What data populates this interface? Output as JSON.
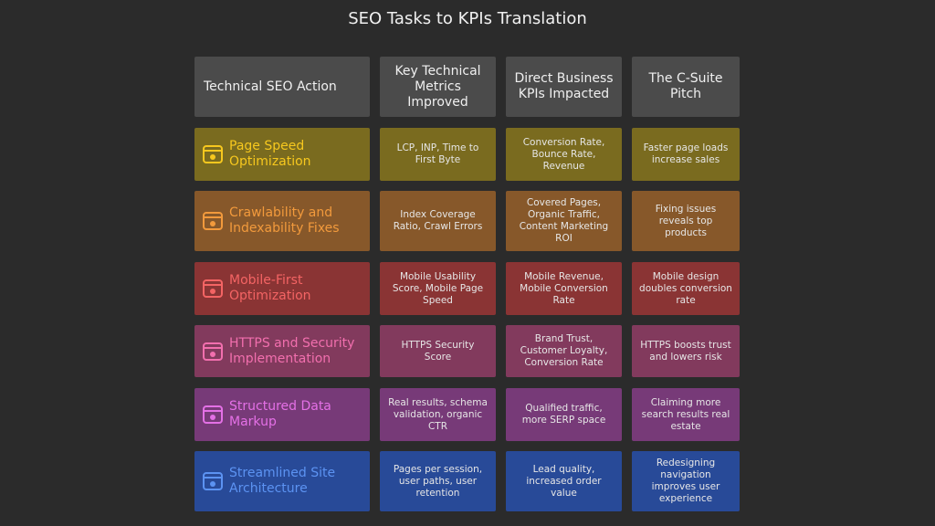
{
  "title": "SEO Tasks to KPIs Translation",
  "table": {
    "headers": [
      "Technical SEO Action",
      "Key Technical Metrics Improved",
      "Direct Business KPIs Impacted",
      "The C-Suite Pitch"
    ],
    "rows": [
      [
        "Page Speed Optimization",
        "LCP, INP, Time to First Byte",
        "Conversion Rate, Bounce Rate, Revenue",
        "Faster page loads increase sales"
      ],
      [
        "Crawlability and Indexability Fixes",
        "Index Coverage Ratio, Crawl Errors",
        "Covered Pages, Organic Traffic, Content Marketing ROI",
        "Fixing issues reveals top products"
      ],
      [
        "Mobile-First Optimization",
        "Mobile Usability Score, Mobile Page Speed",
        "Mobile Revenue, Mobile Conversion Rate",
        "Mobile design doubles conversion rate"
      ],
      [
        "HTTPS and Security Implementation",
        "HTTPS Security Score",
        "Brand Trust, Customer Loyalty, Conversion Rate",
        "HTTPS boosts trust and lowers risk"
      ],
      [
        "Structured Data Markup",
        "Real results, schema validation, organic CTR",
        "Qualified traffic, more SERP space",
        "Claiming more search results real estate"
      ],
      [
        "Streamlined Site Architecture",
        "Pages per session, user paths, user retention",
        "Lead quality, increased order value",
        "Redesigning navigation improves user experience"
      ]
    ]
  }
}
